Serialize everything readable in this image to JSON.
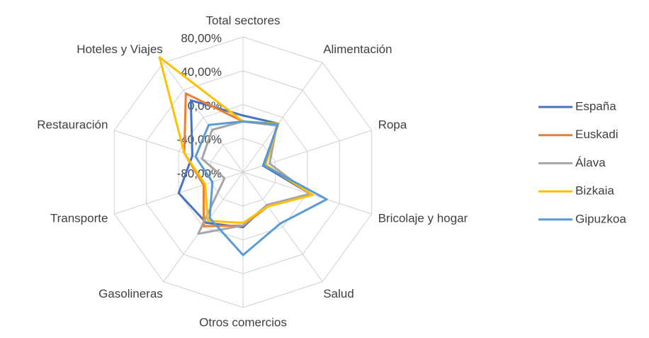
{
  "chart_data": {
    "type": "radar",
    "categories": [
      "Total sectores",
      "Alimentación",
      "Ropa",
      "Bricolaje y hogar",
      "Salud",
      "Otros comercios",
      "Gasolineras",
      "Transporte",
      "Restauración",
      "Hoteles y Viajes"
    ],
    "series": [
      {
        "name": "España",
        "color": "#4472c4",
        "values": [
          -13,
          -9,
          -55,
          5,
          -32,
          -15,
          -6,
          0,
          -17,
          25
        ]
      },
      {
        "name": "Euskadi",
        "color": "#ed7d31",
        "values": [
          -20,
          -10,
          -52,
          5,
          -30,
          -17,
          -1,
          -31,
          -7,
          35
        ]
      },
      {
        "name": "Álava",
        "color": "#a5a5a5",
        "values": [
          -20,
          -12,
          -47,
          3,
          -32,
          -17,
          10,
          -57,
          -29,
          -18
        ]
      },
      {
        "name": "Bizkaia",
        "color": "#ffc000",
        "values": [
          -20,
          -9,
          -52,
          7,
          -30,
          -20,
          -9,
          -33,
          -7,
          88
        ]
      },
      {
        "name": "Gipuzkoa",
        "color": "#5b9bd5",
        "values": [
          -20,
          -10,
          -54,
          24,
          -5,
          18,
          -13,
          -42,
          -21,
          -11
        ]
      }
    ],
    "ylim": [
      -80,
      80
    ],
    "yticks": [
      {
        "value": -80,
        "label": "-80,00%"
      },
      {
        "value": -40,
        "label": "-40,00%"
      },
      {
        "value": 0,
        "label": "0,00%"
      },
      {
        "value": 40,
        "label": "40,00%"
      },
      {
        "value": 80,
        "label": "80,00%"
      }
    ],
    "grid": true,
    "legend": "right"
  }
}
